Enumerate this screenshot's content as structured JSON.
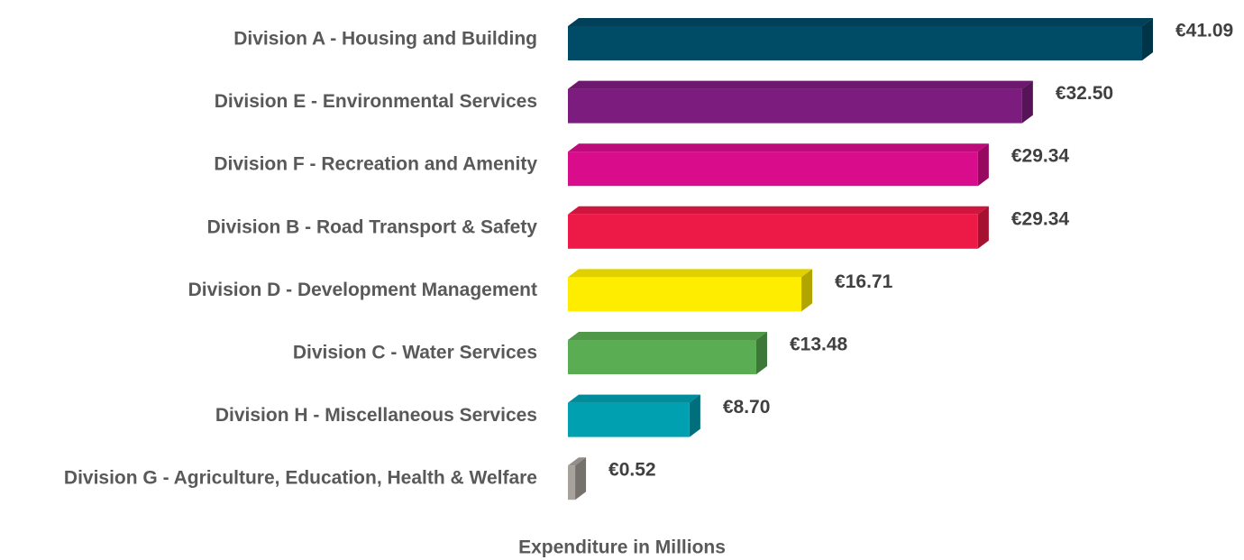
{
  "chart_data": {
    "type": "bar3d_horizontal",
    "x_label": "Expenditure in Millions",
    "categories": [
      "Division A - Housing and Building",
      "Division E - Environmental Services",
      "Division F - Recreation and Amenity",
      "Division B - Road Transport & Safety",
      "Division D - Development Management",
      "Division C - Water Services",
      "Division H - Miscellaneous Services",
      "Division G - Agriculture, Education, Health & Welfare"
    ],
    "values": [
      41.09,
      32.5,
      29.34,
      29.34,
      16.71,
      13.48,
      8.7,
      0.52
    ],
    "value_labels": [
      "€41.09",
      "€32.50",
      "€29.34",
      "€29.34",
      "€16.71",
      "€13.48",
      "€8.70",
      "€0.52"
    ],
    "colors": [
      "#004b66",
      "#7b1c7e",
      "#d90d8c",
      "#ed1a47",
      "#ffed00",
      "#5aad52",
      "#00a0b0",
      "#a8a29c"
    ]
  }
}
